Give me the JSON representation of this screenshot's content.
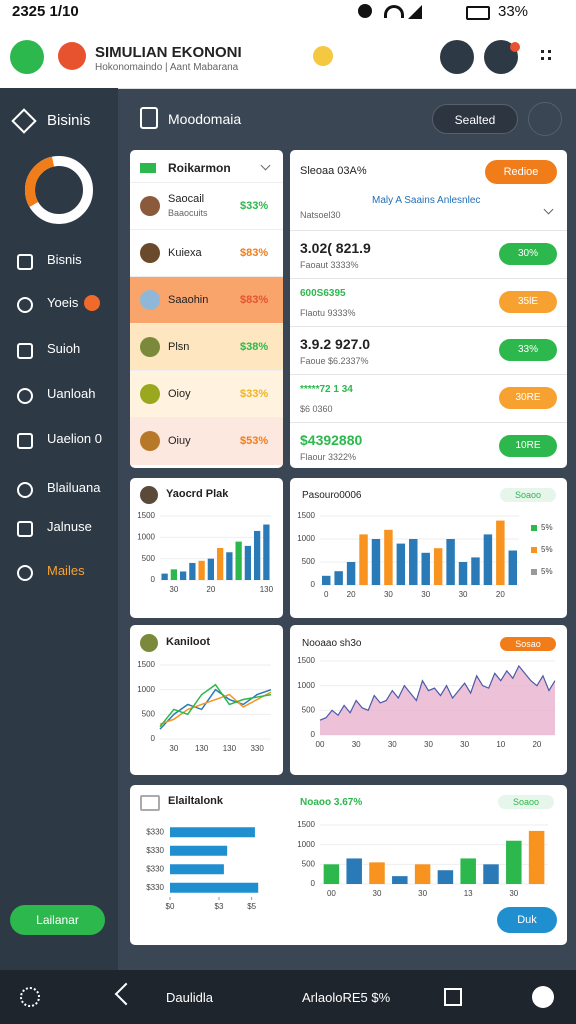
{
  "status": {
    "time": "2325 1/10",
    "battery": "33%"
  },
  "header": {
    "title": "SIMULIAN EKONONI",
    "subtitle": "Hokonomaindo | Aant Mabarana"
  },
  "sidebar": {
    "brand": "Bisinis",
    "donut": {
      "value": 30,
      "lim": [
        0,
        100
      ]
    },
    "items": [
      "Bisnis",
      "Yoeis",
      "Suioh",
      "Uanloah",
      "Uaelion 0",
      "Blailuana",
      "Jalnuse",
      "Mailes"
    ],
    "button": "Lailanar"
  },
  "toolbar": {
    "title": "Moodomaia",
    "button": "Sealted"
  },
  "ranking": {
    "title": "Roikarmon",
    "rows": [
      {
        "name": "Saocail",
        "sub": "Baaocuits",
        "value": "$33%"
      },
      {
        "name": "Kuiexa",
        "sub": "",
        "value": "$83%"
      },
      {
        "name": "Saaohin",
        "sub": "",
        "value": "$83%"
      },
      {
        "name": "Plsn",
        "sub": "",
        "value": "$38%"
      },
      {
        "name": "Oioy",
        "sub": "",
        "value": "$33%"
      },
      {
        "name": "Oiuy",
        "sub": "",
        "value": "$53%"
      }
    ]
  },
  "market": {
    "title": "Sleoaa 03A%",
    "button": "Redioe",
    "subtitle": "Maly A Saains Anlesnlec",
    "note": "Natsoel30",
    "rows": [
      {
        "value": "3.02( 821.9",
        "sub": "Faoaut 3333%",
        "button": "30%"
      },
      {
        "value": "600S6395",
        "sub": "Flaotu 9333%",
        "button": "35lE"
      },
      {
        "value": "3.9.2 927.0",
        "sub": "Faoue $6.2337%",
        "button": "33%"
      },
      {
        "value": "*****72 1 34",
        "sub": "$6 0360",
        "button": "30RE"
      },
      {
        "value": "$4392880",
        "sub": "Flaour 3322%",
        "button": "10RE"
      }
    ]
  },
  "charts": [
    {
      "type": "bar",
      "title": "Yaocrd Plak",
      "ylim": [
        0,
        1500
      ],
      "yticks": [
        0,
        500,
        1000,
        1500
      ],
      "categories": [
        null,
        "30",
        null,
        null,
        null,
        "20",
        null,
        null,
        null,
        null,
        null,
        "130"
      ],
      "values": [
        150,
        250,
        200,
        400,
        450,
        500,
        750,
        650,
        900,
        800,
        1150,
        1300
      ],
      "colors": [
        "#2a7ab8",
        "#2db84d",
        "#2a7ab8",
        "#2a7ab8",
        "#f7931e",
        "#2a7ab8",
        "#f7931e",
        "#2a7ab8",
        "#2db84d",
        "#2a7ab8",
        "#2a7ab8",
        "#2a7ab8"
      ]
    },
    {
      "type": "bar",
      "title": "Pasouro0006",
      "badge": "Soaoo",
      "ylim": [
        0,
        1500
      ],
      "yticks": [
        0,
        500,
        1000,
        1500
      ],
      "categories": [
        "0",
        null,
        "20",
        null,
        null,
        "30",
        null,
        null,
        "30",
        null,
        null,
        "30",
        null,
        null,
        "20",
        null
      ],
      "values": [
        200,
        300,
        500,
        1100,
        1000,
        1200,
        900,
        1000,
        700,
        800,
        1000,
        500,
        600,
        1100,
        1400,
        750
      ],
      "colors": [
        "#2a7ab8",
        "#2a7ab8",
        "#2a7ab8",
        "#f7931e",
        "#2a7ab8",
        "#f7931e",
        "#2a7ab8",
        "#2a7ab8",
        "#2a7ab8",
        "#f7931e",
        "#2a7ab8",
        "#2a7ab8",
        "#2a7ab8",
        "#2a7ab8",
        "#f7931e",
        "#2a7ab8"
      ],
      "legend": [
        {
          "label": "5%",
          "color": "#2db84d"
        },
        {
          "label": "5%",
          "color": "#f7931e"
        },
        {
          "label": "5%",
          "color": "#999999"
        }
      ]
    },
    {
      "type": "line",
      "title": "Kaniloot",
      "ylim": [
        0,
        1500
      ],
      "yticks": [
        0,
        500,
        1000,
        1500
      ],
      "categories": [
        null,
        "30",
        null,
        "130",
        null,
        "130",
        null,
        "330",
        null
      ],
      "series": [
        {
          "color": "#2a7ab8",
          "values": [
            200,
            500,
            700,
            600,
            1000,
            800,
            700,
            900,
            1000
          ]
        },
        {
          "color": "#f7931e",
          "values": [
            300,
            400,
            600,
            700,
            800,
            900,
            650,
            800,
            950
          ]
        },
        {
          "color": "#2db84d",
          "values": [
            250,
            600,
            500,
            900,
            1100,
            700,
            800,
            850,
            900
          ]
        }
      ]
    },
    {
      "type": "area",
      "title": "Nooaao sh3o",
      "badge": "Sosao",
      "ylim": [
        0,
        1500
      ],
      "yticks": [
        0,
        500,
        1000,
        1500
      ],
      "categories": [
        "00",
        null,
        null,
        null,
        null,
        null,
        "30",
        null,
        null,
        null,
        null,
        null,
        "30",
        null,
        null,
        null,
        null,
        null,
        "30",
        null,
        null,
        null,
        null,
        null,
        "30",
        null,
        null,
        null,
        null,
        null,
        "10",
        null,
        null,
        null,
        null,
        null,
        "20",
        null,
        null,
        null
      ],
      "values": [
        300,
        350,
        500,
        400,
        600,
        450,
        700,
        550,
        500,
        800,
        650,
        700,
        900,
        750,
        1000,
        850,
        700,
        1100,
        900,
        950,
        800,
        1000,
        750,
        900,
        1050,
        850,
        1200,
        1000,
        950,
        1250,
        1100,
        1300,
        1150,
        1400,
        1250,
        1100,
        1000,
        1200,
        900,
        1100
      ],
      "color": "#e6a8c8",
      "line": "#4b5aa8"
    },
    {
      "type": "hbar",
      "title": "Elailtalonk",
      "xlim": [
        0,
        6
      ],
      "xticks": [
        {
          "value": 0,
          "label": "$0"
        },
        {
          "value": 3,
          "label": "$3"
        },
        {
          "value": 5,
          "label": "$5"
        }
      ],
      "categories": [
        "$330",
        "$330",
        "$330",
        "$330"
      ],
      "values": [
        5.2,
        3.5,
        3.3,
        5.4
      ],
      "color": "#1f8fd0"
    },
    {
      "type": "bar",
      "title": "Noaoo 3.67%",
      "badge": "Soaoo",
      "button": "Duk",
      "ylim": [
        0,
        1500
      ],
      "yticks": [
        0,
        500,
        1000,
        1500
      ],
      "categories": [
        "00",
        null,
        "30",
        null,
        "30",
        null,
        "13",
        null,
        "30",
        null
      ],
      "values": [
        500,
        650,
        550,
        200,
        500,
        350,
        650,
        500,
        1100,
        1350
      ],
      "colors": [
        "#2db84d",
        "#2a7ab8",
        "#f7931e",
        "#2a7ab8",
        "#f7931e",
        "#2a7ab8",
        "#2db84d",
        "#2a7ab8",
        "#2db84d",
        "#f7931e"
      ]
    }
  ],
  "nav": {
    "left": "Daulidla",
    "right": "ArlaoloRE5 $%"
  }
}
